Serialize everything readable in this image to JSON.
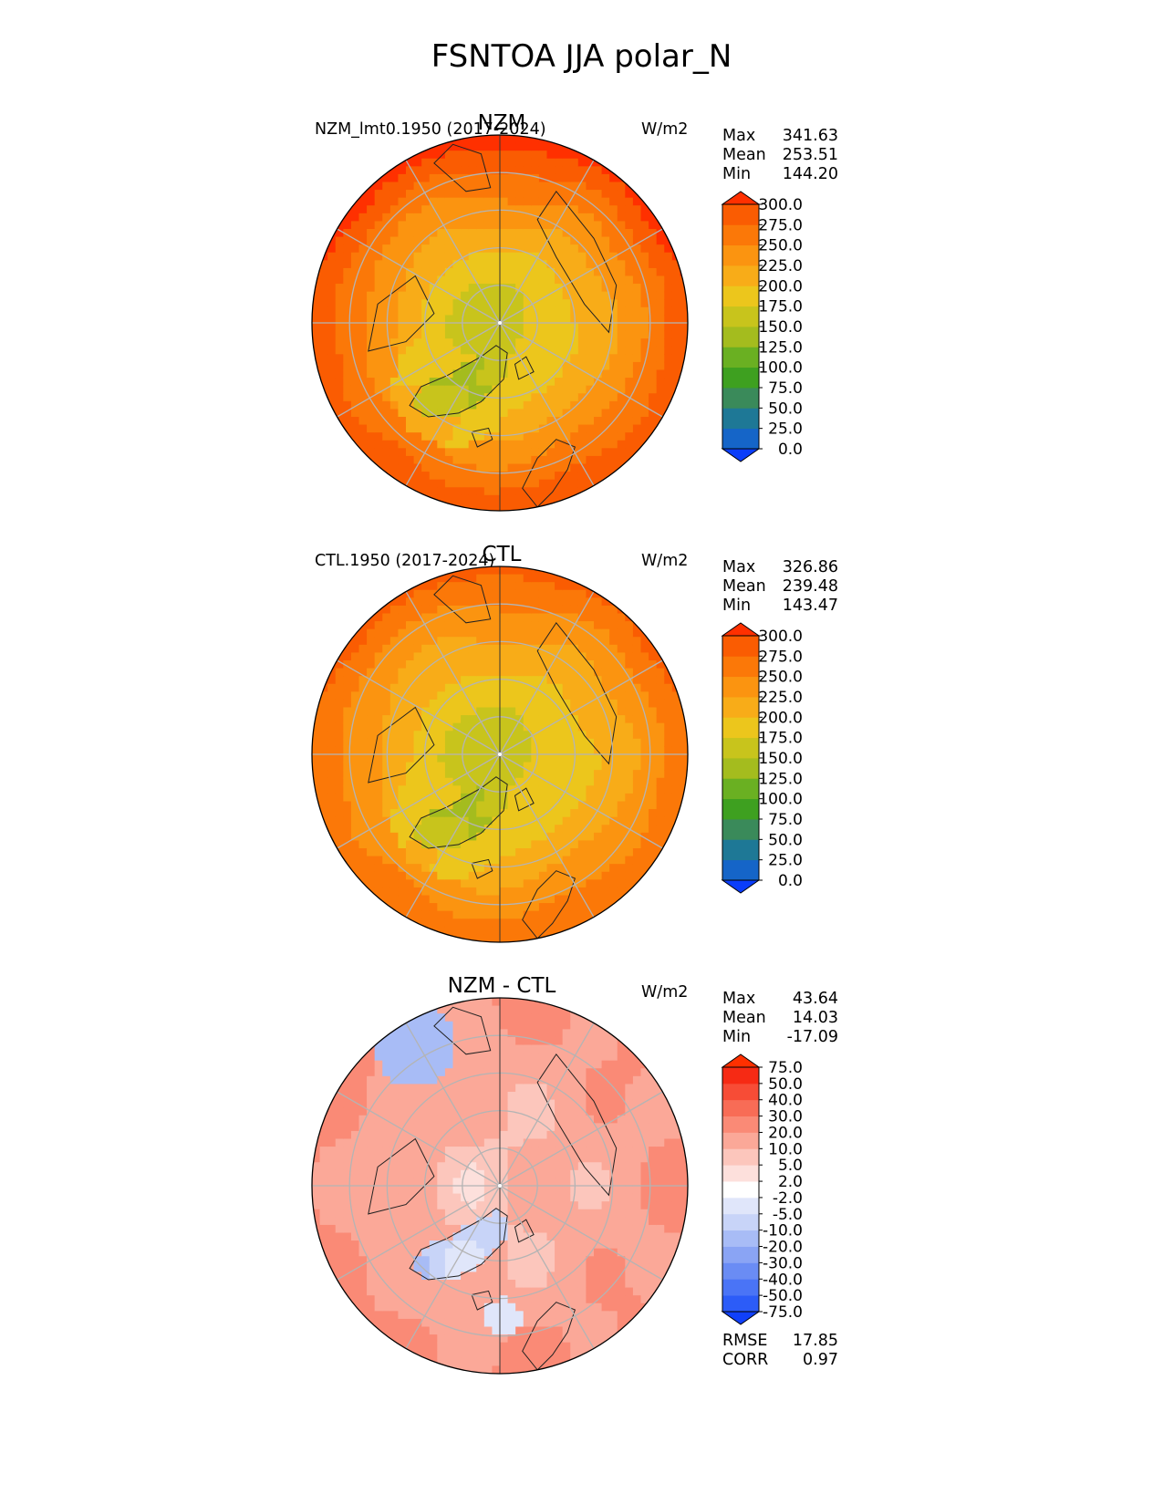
{
  "figure": {
    "title": "FSNTOA JJA polar_N"
  },
  "chart_data": [
    {
      "type": "heatmap",
      "projection": "north-polar-stereographic",
      "title": "NZM",
      "dataset_label": "NZM_lmt0.1950 (2017-2024)",
      "units": "W/m2",
      "stats": {
        "max_label": "Max",
        "max": "341.63",
        "mean_label": "Mean",
        "mean": "253.51",
        "min_label": "Min",
        "min": "144.20"
      },
      "colorbar": {
        "ticks": [
          "0.0",
          "25.0",
          "50.0",
          "75.0",
          "100.0",
          "125.0",
          "150.0",
          "175.0",
          "200.0",
          "225.0",
          "250.0",
          "275.0",
          "300.0"
        ],
        "colors": [
          "#0a3dfa",
          "#1565c8",
          "#1e7896",
          "#3a8a5a",
          "#3ea020",
          "#6ab022",
          "#a4bc1e",
          "#c8c41c",
          "#ecc61c",
          "#f8ac18",
          "#fb9410",
          "#fb7808",
          "#fa5c02",
          "#ff3000"
        ],
        "extend": "both"
      },
      "field": {
        "pole_value": 160,
        "edge_value": 295,
        "eurasia_bonus": 20,
        "greenland_value": 150,
        "greenland_ring": 200
      }
    },
    {
      "type": "heatmap",
      "projection": "north-polar-stereographic",
      "title": "CTL",
      "dataset_label": "CTL.1950 (2017-2024)",
      "units": "W/m2",
      "stats": {
        "max_label": "Max",
        "max": "326.86",
        "mean_label": "Mean",
        "mean": "239.48",
        "min_label": "Min",
        "min": "143.47"
      },
      "colorbar": {
        "ticks": [
          "0.0",
          "25.0",
          "50.0",
          "75.0",
          "100.0",
          "125.0",
          "150.0",
          "175.0",
          "200.0",
          "225.0",
          "250.0",
          "275.0",
          "300.0"
        ],
        "colors": [
          "#0a3dfa",
          "#1565c8",
          "#1e7896",
          "#3a8a5a",
          "#3ea020",
          "#6ab022",
          "#a4bc1e",
          "#c8c41c",
          "#ecc61c",
          "#f8ac18",
          "#fb9410",
          "#fb7808",
          "#fa5c02",
          "#ff3000"
        ],
        "extend": "both"
      },
      "field": {
        "pole_value": 160,
        "edge_value": 270,
        "eurasia_bonus": 15,
        "greenland_value": 150,
        "greenland_ring": 195
      }
    },
    {
      "type": "heatmap",
      "projection": "north-polar-stereographic",
      "title": "NZM - CTL",
      "dataset_label": "",
      "units": "W/m2",
      "stats": {
        "max_label": "Max",
        "max": "43.64",
        "mean_label": "Mean",
        "mean": "14.03",
        "min_label": "Min",
        "min": "-17.09"
      },
      "rmse_label": "RMSE",
      "rmse": "17.85",
      "corr_label": "CORR",
      "corr": "0.97",
      "colorbar": {
        "ticks": [
          "-75.0",
          "-50.0",
          "-40.0",
          "-30.0",
          "-20.0",
          "-10.0",
          "-5.0",
          "-2.0",
          "2.0",
          "5.0",
          "10.0",
          "20.0",
          "30.0",
          "40.0",
          "50.0",
          "75.0"
        ],
        "colors": [
          "#1040fa",
          "#2c5cf8",
          "#4a74f6",
          "#6a8cf4",
          "#8aa4f4",
          "#a8bcf6",
          "#c8d4f8",
          "#e0e6fa",
          "#ffffff",
          "#fde0dc",
          "#fcc6bc",
          "#fba898",
          "#fa8a76",
          "#f86c56",
          "#f74c36",
          "#f62a14",
          "#ff3000"
        ],
        "extend": "both"
      },
      "field": {
        "pole_value": 8,
        "edge_value": 22,
        "eurasia_bonus": 0,
        "greenland_value": -8,
        "greenland_ring": 10,
        "pacific_value": -14
      }
    }
  ]
}
